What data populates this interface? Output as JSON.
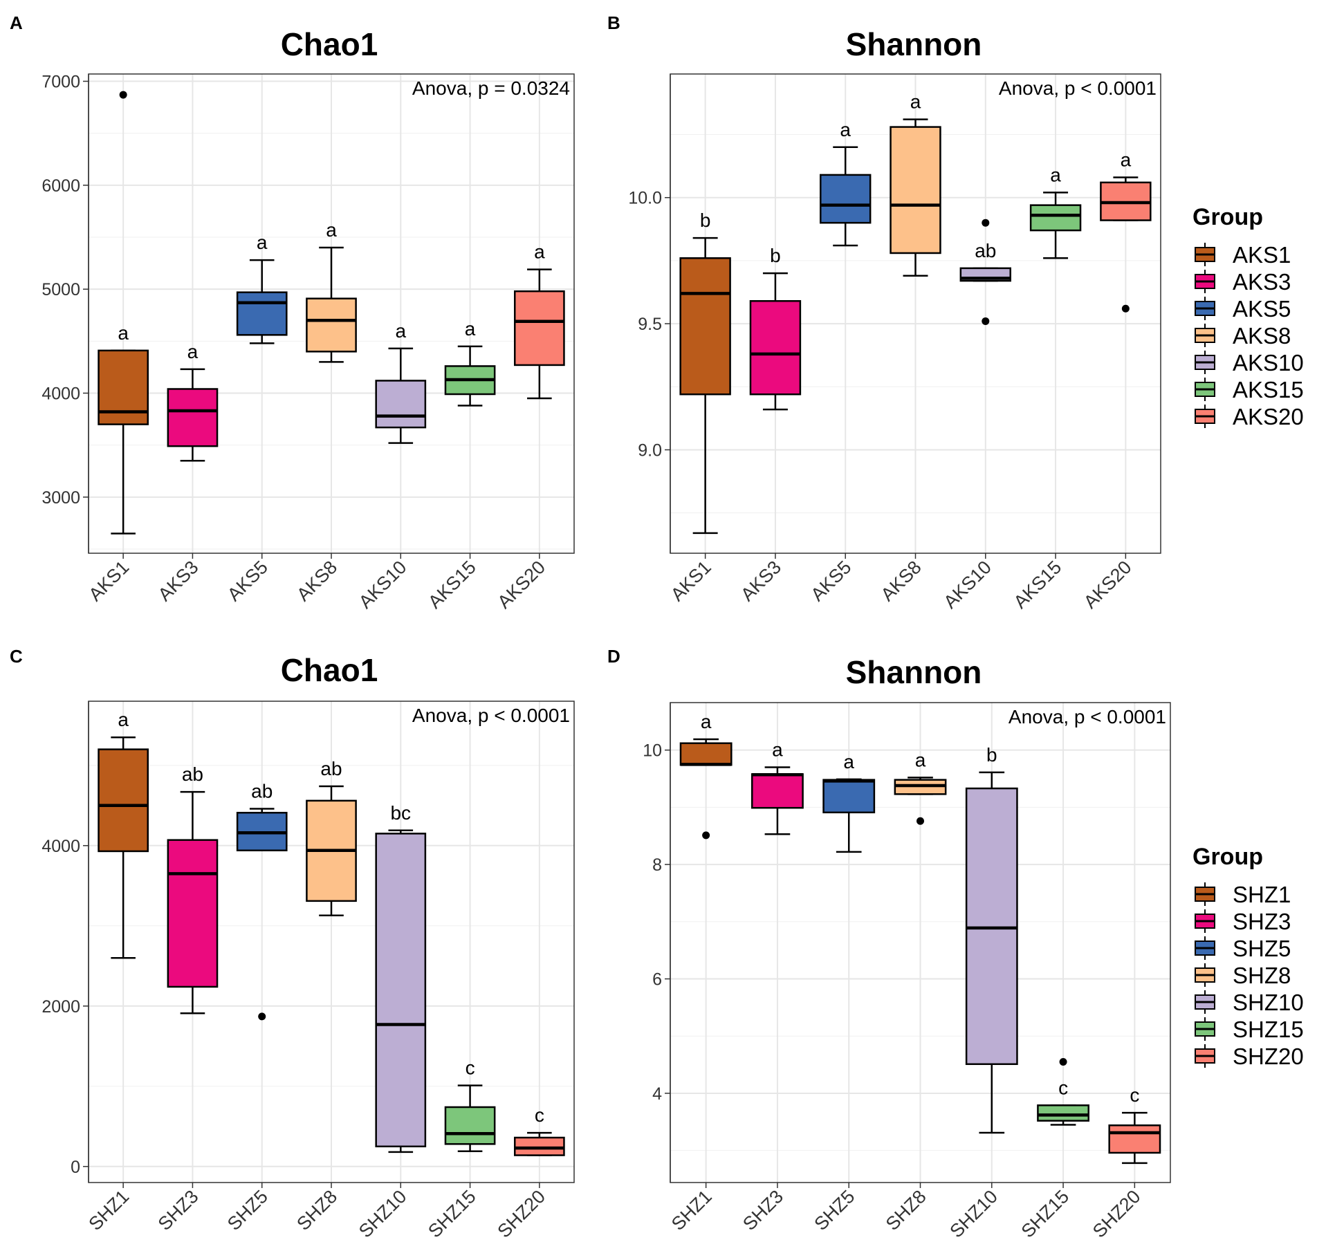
{
  "colors": [
    "#BA5B1B",
    "#EB0A7E",
    "#3A6AB1",
    "#FDC18A",
    "#BCAED3",
    "#7DC67B",
    "#FA8072"
  ],
  "legends": [
    {
      "title": "Group",
      "items": [
        "AKS1",
        "AKS3",
        "AKS5",
        "AKS8",
        "AKS10",
        "AKS15",
        "AKS20"
      ]
    },
    {
      "title": "Group",
      "items": [
        "SHZ1",
        "SHZ3",
        "SHZ5",
        "SHZ8",
        "SHZ10",
        "SHZ15",
        "SHZ20"
      ]
    }
  ],
  "chart_data": [
    {
      "panel": "A",
      "type": "box",
      "title": "Chao1",
      "annotation": "Anova, p = 0.0324",
      "ylim": [
        2460,
        7070
      ],
      "yticks": [
        3000,
        4000,
        5000,
        6000,
        7000
      ],
      "ytick_labels": [
        "3000",
        "4000",
        "5000",
        "6000",
        "7000"
      ],
      "categories": [
        "AKS1",
        "AKS3",
        "AKS5",
        "AKS8",
        "AKS10",
        "AKS15",
        "AKS20"
      ],
      "boxes": [
        {
          "min": 2650,
          "q1": 3700,
          "median": 3820,
          "q3": 4410,
          "max": 4410,
          "outliers": [
            6870
          ],
          "letter": "a"
        },
        {
          "min": 3350,
          "q1": 3490,
          "median": 3830,
          "q3": 4040,
          "max": 4230,
          "outliers": [],
          "letter": "a"
        },
        {
          "min": 4480,
          "q1": 4560,
          "median": 4870,
          "q3": 4970,
          "max": 5280,
          "outliers": [],
          "letter": "a"
        },
        {
          "min": 4300,
          "q1": 4400,
          "median": 4700,
          "q3": 4910,
          "max": 5400,
          "outliers": [],
          "letter": "a"
        },
        {
          "min": 3520,
          "q1": 3670,
          "median": 3780,
          "q3": 4120,
          "max": 4430,
          "outliers": [],
          "letter": "a"
        },
        {
          "min": 3880,
          "q1": 3990,
          "median": 4130,
          "q3": 4260,
          "max": 4450,
          "outliers": [],
          "letter": "a"
        },
        {
          "min": 3950,
          "q1": 4270,
          "median": 4690,
          "q3": 4980,
          "max": 5190,
          "outliers": [],
          "letter": "a"
        }
      ]
    },
    {
      "panel": "B",
      "type": "box",
      "title": "Shannon",
      "annotation": "Anova, p < 0.0001",
      "ylim": [
        8.59,
        10.49
      ],
      "yticks": [
        9.0,
        9.5,
        10.0
      ],
      "ytick_labels": [
        "9.0",
        "9.5",
        "10.0"
      ],
      "categories": [
        "AKS1",
        "AKS3",
        "AKS5",
        "AKS8",
        "AKS10",
        "AKS15",
        "AKS20"
      ],
      "boxes": [
        {
          "min": 8.67,
          "q1": 9.22,
          "median": 9.62,
          "q3": 9.76,
          "max": 9.84,
          "outliers": [],
          "letter": "b"
        },
        {
          "min": 9.16,
          "q1": 9.22,
          "median": 9.38,
          "q3": 9.59,
          "max": 9.7,
          "outliers": [],
          "letter": "b"
        },
        {
          "min": 9.81,
          "q1": 9.9,
          "median": 9.97,
          "q3": 10.09,
          "max": 10.2,
          "outliers": [],
          "letter": "a"
        },
        {
          "min": 9.69,
          "q1": 9.78,
          "median": 9.97,
          "q3": 10.28,
          "max": 10.31,
          "outliers": [],
          "letter": "a"
        },
        {
          "min": 9.67,
          "q1": 9.67,
          "median": 9.68,
          "q3": 9.72,
          "max": 9.72,
          "outliers": [
            9.9,
            9.51
          ],
          "letter": "ab"
        },
        {
          "min": 9.76,
          "q1": 9.87,
          "median": 9.93,
          "q3": 9.97,
          "max": 10.02,
          "outliers": [],
          "letter": "a"
        },
        {
          "min": 9.91,
          "q1": 9.91,
          "median": 9.98,
          "q3": 10.06,
          "max": 10.08,
          "outliers": [
            9.56
          ],
          "letter": "a"
        }
      ]
    },
    {
      "panel": "C",
      "type": "box",
      "title": "Chao1",
      "annotation": "Anova, p < 0.0001",
      "ylim": [
        -200,
        5800
      ],
      "yticks": [
        0,
        2000,
        4000
      ],
      "ytick_labels": [
        "0",
        "2000",
        "4000"
      ],
      "categories": [
        "SHZ1",
        "SHZ3",
        "SHZ5",
        "SHZ8",
        "SHZ10",
        "SHZ15",
        "SHZ20"
      ],
      "boxes": [
        {
          "min": 2600,
          "q1": 3930,
          "median": 4500,
          "q3": 5200,
          "max": 5350,
          "outliers": [],
          "letter": "a"
        },
        {
          "min": 1910,
          "q1": 2240,
          "median": 3650,
          "q3": 4070,
          "max": 4670,
          "outliers": [],
          "letter": "ab"
        },
        {
          "min": 3940,
          "q1": 3940,
          "median": 4160,
          "q3": 4410,
          "max": 4460,
          "outliers": [
            1870
          ],
          "letter": "ab"
        },
        {
          "min": 3130,
          "q1": 3310,
          "median": 3940,
          "q3": 4560,
          "max": 4740,
          "outliers": [],
          "letter": "ab"
        },
        {
          "min": 180,
          "q1": 250,
          "median": 1770,
          "q3": 4150,
          "max": 4190,
          "outliers": [],
          "letter": "bc"
        },
        {
          "min": 190,
          "q1": 280,
          "median": 410,
          "q3": 740,
          "max": 1010,
          "outliers": [],
          "letter": "c"
        },
        {
          "min": 140,
          "q1": 140,
          "median": 230,
          "q3": 360,
          "max": 420,
          "outliers": [],
          "letter": "c"
        }
      ]
    },
    {
      "panel": "D",
      "type": "box",
      "title": "Shannon",
      "annotation": "Anova, p < 0.0001",
      "ylim": [
        2.44,
        10.83
      ],
      "yticks": [
        4,
        6,
        8,
        10
      ],
      "ytick_labels": [
        "4",
        "6",
        "8",
        "10"
      ],
      "categories": [
        "SHZ1",
        "SHZ3",
        "SHZ5",
        "SHZ8",
        "SHZ10",
        "SHZ15",
        "SHZ20"
      ],
      "boxes": [
        {
          "min": 9.74,
          "q1": 9.74,
          "median": 9.75,
          "q3": 10.12,
          "max": 10.19,
          "outliers": [
            8.51
          ],
          "letter": "a"
        },
        {
          "min": 8.53,
          "q1": 8.99,
          "median": 9.57,
          "q3": 9.58,
          "max": 9.7,
          "outliers": [],
          "letter": "a"
        },
        {
          "min": 8.22,
          "q1": 8.91,
          "median": 9.46,
          "q3": 9.48,
          "max": 9.49,
          "outliers": [],
          "letter": "a"
        },
        {
          "min": 9.23,
          "q1": 9.23,
          "median": 9.38,
          "q3": 9.48,
          "max": 9.52,
          "outliers": [
            8.76
          ],
          "letter": "a"
        },
        {
          "min": 3.31,
          "q1": 4.51,
          "median": 6.89,
          "q3": 9.33,
          "max": 9.61,
          "outliers": [],
          "letter": "b"
        },
        {
          "min": 3.45,
          "q1": 3.52,
          "median": 3.62,
          "q3": 3.79,
          "max": 3.79,
          "outliers": [
            4.55
          ],
          "letter": "c"
        },
        {
          "min": 2.78,
          "q1": 2.96,
          "median": 3.31,
          "q3": 3.44,
          "max": 3.66,
          "outliers": [],
          "letter": "c"
        }
      ]
    }
  ]
}
